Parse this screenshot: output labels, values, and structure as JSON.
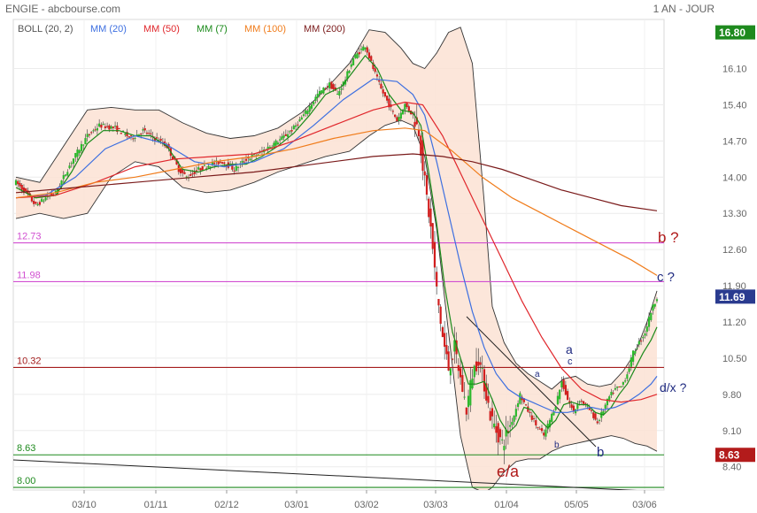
{
  "header": {
    "title": "ENGIE - abcbourse.com",
    "period": "1 AN - JOUR"
  },
  "colors": {
    "ma20": "#3d6fe0",
    "ma50": "#e0262b",
    "ma7": "#1a8a1a",
    "ma100": "#f07c1b",
    "ma200": "#7a1a1a",
    "boll_fill": "#fbe2d4",
    "candle_up": "#2db82d",
    "candle_down": "#d11d1d",
    "level_magenta": "#d14fd1",
    "level_maroon": "#a51d1d",
    "level_green": "#1e8a1e"
  },
  "chart_data": {
    "type": "line",
    "title": "",
    "ylabel": "",
    "xlabel": "",
    "ylim": [
      7.95,
      17.05
    ],
    "yticks": [
      "16.10",
      "15.40",
      "14.70",
      "14.00",
      "13.30",
      "12.60",
      "11.90",
      "11.20",
      "10.50",
      "9.80",
      "9.10",
      "8.40"
    ],
    "xticks": [
      "03/10",
      "01/11",
      "02/12",
      "03/01",
      "03/02",
      "03/03",
      "01/04",
      "05/05",
      "03/06"
    ],
    "legend": [
      {
        "name": "BOLL (20, 2)",
        "color": "#555555"
      },
      {
        "name": "MM (20)",
        "color": "#3d6fe0"
      },
      {
        "name": "MM (50)",
        "color": "#e0262b"
      },
      {
        "name": "MM (7)",
        "color": "#1a8a1a"
      },
      {
        "name": "MM (100)",
        "color": "#f07c1b"
      },
      {
        "name": "MM (200)",
        "color": "#7a1a1a"
      }
    ],
    "price_badges": {
      "high": "16.80",
      "last": "11.69",
      "low": "8.63"
    },
    "levels": [
      {
        "label": "12.73",
        "value": 12.73,
        "color": "#d14fd1"
      },
      {
        "label": "11.98",
        "value": 11.98,
        "color": "#d14fd1"
      },
      {
        "label": "10.32",
        "value": 10.32,
        "color": "#a51d1d"
      },
      {
        "label": "8.63",
        "value": 8.63,
        "color": "#1e8a1e"
      },
      {
        "label": "8.00",
        "value": 8.0,
        "color": "#1e8a1e"
      }
    ],
    "annotations": [
      {
        "text": "b ?",
        "color": "#b01919"
      },
      {
        "text": "c ?",
        "color": "#1f2a80"
      },
      {
        "text": "a",
        "color": "#1f2a80"
      },
      {
        "text": "c",
        "color": "#1f2a80"
      },
      {
        "text": "a",
        "color": "#1f2a80"
      },
      {
        "text": "d/x ?",
        "color": "#1f2a80"
      },
      {
        "text": "b",
        "color": "#1f2a80"
      },
      {
        "text": "b",
        "color": "#1f2a80"
      },
      {
        "text": "e/a",
        "color": "#b01919"
      }
    ],
    "price_path": [
      [
        0,
        13.9
      ],
      [
        5,
        13.7
      ],
      [
        10,
        13.45
      ],
      [
        15,
        13.6
      ],
      [
        20,
        13.7
      ],
      [
        28,
        14.3
      ],
      [
        36,
        14.8
      ],
      [
        42,
        15.0
      ],
      [
        50,
        14.95
      ],
      [
        58,
        14.75
      ],
      [
        64,
        14.9
      ],
      [
        70,
        14.75
      ],
      [
        76,
        14.6
      ],
      [
        82,
        14.15
      ],
      [
        86,
        14.0
      ],
      [
        92,
        14.15
      ],
      [
        98,
        14.25
      ],
      [
        104,
        14.3
      ],
      [
        110,
        14.15
      ],
      [
        116,
        14.35
      ],
      [
        122,
        14.45
      ],
      [
        128,
        14.6
      ],
      [
        134,
        14.75
      ],
      [
        140,
        14.95
      ],
      [
        146,
        15.25
      ],
      [
        152,
        15.6
      ],
      [
        158,
        15.8
      ],
      [
        162,
        15.6
      ],
      [
        166,
        15.9
      ],
      [
        170,
        16.3
      ],
      [
        176,
        16.55
      ],
      [
        180,
        16.1
      ],
      [
        184,
        15.7
      ],
      [
        188,
        15.4
      ],
      [
        192,
        15.1
      ],
      [
        196,
        15.4
      ],
      [
        200,
        15.2
      ],
      [
        203,
        14.9
      ],
      [
        206,
        13.9
      ],
      [
        209,
        13.0
      ],
      [
        212,
        11.8
      ],
      [
        215,
        10.9
      ],
      [
        218,
        10.3
      ],
      [
        221,
        10.7
      ],
      [
        224,
        10.1
      ],
      [
        227,
        9.5
      ],
      [
        230,
        10.2
      ],
      [
        233,
        10.5
      ],
      [
        236,
        10.0
      ],
      [
        239,
        9.4
      ],
      [
        242,
        9.1
      ],
      [
        245,
        8.85
      ],
      [
        248,
        9.1
      ],
      [
        251,
        9.4
      ],
      [
        254,
        9.8
      ],
      [
        257,
        9.55
      ],
      [
        260,
        9.35
      ],
      [
        263,
        9.15
      ],
      [
        266,
        9.0
      ],
      [
        269,
        9.3
      ],
      [
        272,
        9.6
      ],
      [
        275,
        10.05
      ],
      [
        278,
        9.7
      ],
      [
        281,
        9.45
      ],
      [
        284,
        9.7
      ],
      [
        287,
        9.6
      ],
      [
        290,
        9.45
      ],
      [
        293,
        9.25
      ],
      [
        296,
        9.5
      ],
      [
        299,
        9.75
      ],
      [
        302,
        9.9
      ],
      [
        305,
        9.95
      ],
      [
        308,
        10.2
      ],
      [
        311,
        10.6
      ],
      [
        314,
        10.8
      ],
      [
        317,
        11.0
      ],
      [
        320,
        11.4
      ],
      [
        323,
        11.69
      ]
    ],
    "series": [
      {
        "name": "MM (7)",
        "color": "#1a8a1a",
        "values": [
          [
            0,
            13.8
          ],
          [
            10,
            13.6
          ],
          [
            20,
            13.65
          ],
          [
            28,
            14.1
          ],
          [
            36,
            14.65
          ],
          [
            44,
            14.9
          ],
          [
            52,
            14.9
          ],
          [
            60,
            14.8
          ],
          [
            68,
            14.8
          ],
          [
            76,
            14.6
          ],
          [
            84,
            14.15
          ],
          [
            92,
            14.1
          ],
          [
            100,
            14.2
          ],
          [
            108,
            14.25
          ],
          [
            116,
            14.25
          ],
          [
            124,
            14.4
          ],
          [
            132,
            14.6
          ],
          [
            140,
            14.85
          ],
          [
            148,
            15.2
          ],
          [
            156,
            15.6
          ],
          [
            164,
            15.75
          ],
          [
            170,
            16.05
          ],
          [
            176,
            16.35
          ],
          [
            182,
            16.1
          ],
          [
            188,
            15.6
          ],
          [
            194,
            15.3
          ],
          [
            200,
            15.25
          ],
          [
            204,
            15.0
          ],
          [
            208,
            14.1
          ],
          [
            212,
            13.1
          ],
          [
            216,
            11.9
          ],
          [
            220,
            11.0
          ],
          [
            224,
            10.5
          ],
          [
            228,
            10.0
          ],
          [
            232,
            10.0
          ],
          [
            236,
            10.05
          ],
          [
            240,
            9.7
          ],
          [
            244,
            9.3
          ],
          [
            248,
            9.05
          ],
          [
            252,
            9.2
          ],
          [
            256,
            9.55
          ],
          [
            260,
            9.5
          ],
          [
            264,
            9.3
          ],
          [
            268,
            9.15
          ],
          [
            272,
            9.3
          ],
          [
            276,
            9.6
          ],
          [
            280,
            9.65
          ],
          [
            284,
            9.6
          ],
          [
            288,
            9.6
          ],
          [
            292,
            9.45
          ],
          [
            296,
            9.4
          ],
          [
            300,
            9.55
          ],
          [
            304,
            9.8
          ],
          [
            308,
            10.0
          ],
          [
            312,
            10.3
          ],
          [
            316,
            10.6
          ],
          [
            320,
            10.85
          ],
          [
            323,
            11.1
          ]
        ]
      },
      {
        "name": "MM (20)",
        "color": "#3d6fe0",
        "values": [
          [
            0,
            13.6
          ],
          [
            15,
            13.65
          ],
          [
            30,
            14.0
          ],
          [
            45,
            14.55
          ],
          [
            60,
            14.8
          ],
          [
            75,
            14.65
          ],
          [
            90,
            14.3
          ],
          [
            105,
            14.2
          ],
          [
            120,
            14.3
          ],
          [
            135,
            14.55
          ],
          [
            150,
            15.0
          ],
          [
            165,
            15.5
          ],
          [
            180,
            15.9
          ],
          [
            192,
            15.85
          ],
          [
            200,
            15.6
          ],
          [
            206,
            15.2
          ],
          [
            212,
            14.3
          ],
          [
            218,
            13.3
          ],
          [
            224,
            12.3
          ],
          [
            230,
            11.4
          ],
          [
            236,
            10.7
          ],
          [
            242,
            10.2
          ],
          [
            248,
            9.9
          ],
          [
            254,
            9.75
          ],
          [
            260,
            9.65
          ],
          [
            266,
            9.55
          ],
          [
            272,
            9.45
          ],
          [
            278,
            9.45
          ],
          [
            284,
            9.5
          ],
          [
            290,
            9.55
          ],
          [
            296,
            9.5
          ],
          [
            302,
            9.55
          ],
          [
            308,
            9.65
          ],
          [
            314,
            9.8
          ],
          [
            320,
            10.0
          ],
          [
            323,
            10.15
          ]
        ]
      },
      {
        "name": "MM (50)",
        "color": "#e0262b",
        "values": [
          [
            0,
            13.6
          ],
          [
            20,
            13.65
          ],
          [
            40,
            13.9
          ],
          [
            60,
            14.2
          ],
          [
            80,
            14.35
          ],
          [
            100,
            14.4
          ],
          [
            120,
            14.45
          ],
          [
            140,
            14.7
          ],
          [
            160,
            15.0
          ],
          [
            180,
            15.3
          ],
          [
            196,
            15.45
          ],
          [
            205,
            15.4
          ],
          [
            215,
            14.8
          ],
          [
            225,
            14.0
          ],
          [
            235,
            13.2
          ],
          [
            245,
            12.4
          ],
          [
            255,
            11.6
          ],
          [
            265,
            10.9
          ],
          [
            275,
            10.3
          ],
          [
            285,
            9.9
          ],
          [
            295,
            9.7
          ],
          [
            305,
            9.65
          ],
          [
            315,
            9.7
          ],
          [
            323,
            9.8
          ]
        ]
      },
      {
        "name": "MM (100)",
        "color": "#f07c1b",
        "values": [
          [
            0,
            13.6
          ],
          [
            20,
            13.7
          ],
          [
            40,
            13.9
          ],
          [
            60,
            14.0
          ],
          [
            80,
            14.15
          ],
          [
            100,
            14.3
          ],
          [
            120,
            14.4
          ],
          [
            140,
            14.55
          ],
          [
            160,
            14.75
          ],
          [
            180,
            14.9
          ],
          [
            196,
            14.95
          ],
          [
            206,
            14.9
          ],
          [
            220,
            14.5
          ],
          [
            235,
            14.0
          ],
          [
            250,
            13.6
          ],
          [
            265,
            13.3
          ],
          [
            280,
            13.0
          ],
          [
            295,
            12.7
          ],
          [
            310,
            12.4
          ],
          [
            323,
            12.1
          ]
        ]
      },
      {
        "name": "MM (200)",
        "color": "#7a1a1a",
        "values": [
          [
            0,
            13.7
          ],
          [
            30,
            13.8
          ],
          [
            60,
            13.9
          ],
          [
            90,
            14.0
          ],
          [
            120,
            14.1
          ],
          [
            150,
            14.25
          ],
          [
            180,
            14.4
          ],
          [
            200,
            14.45
          ],
          [
            215,
            14.4
          ],
          [
            230,
            14.3
          ],
          [
            245,
            14.15
          ],
          [
            260,
            13.95
          ],
          [
            275,
            13.75
          ],
          [
            290,
            13.6
          ],
          [
            305,
            13.45
          ],
          [
            323,
            13.35
          ]
        ]
      }
    ],
    "bollinger": {
      "upper": [
        [
          0,
          14.0
        ],
        [
          12,
          13.9
        ],
        [
          24,
          14.6
        ],
        [
          36,
          15.3
        ],
        [
          48,
          15.35
        ],
        [
          60,
          15.3
        ],
        [
          72,
          15.3
        ],
        [
          84,
          15.05
        ],
        [
          96,
          14.85
        ],
        [
          108,
          14.75
        ],
        [
          120,
          14.8
        ],
        [
          132,
          14.95
        ],
        [
          144,
          15.25
        ],
        [
          156,
          15.7
        ],
        [
          168,
          16.2
        ],
        [
          178,
          16.85
        ],
        [
          186,
          16.8
        ],
        [
          194,
          16.5
        ],
        [
          200,
          16.2
        ],
        [
          206,
          16.1
        ],
        [
          212,
          16.4
        ],
        [
          218,
          16.8
        ],
        [
          224,
          16.9
        ],
        [
          230,
          16.2
        ],
        [
          236,
          13.5
        ],
        [
          240,
          11.5
        ],
        [
          246,
          10.8
        ],
        [
          252,
          10.4
        ],
        [
          258,
          10.2
        ],
        [
          264,
          10.05
        ],
        [
          270,
          9.9
        ],
        [
          276,
          10.1
        ],
        [
          282,
          10.15
        ],
        [
          288,
          10.0
        ],
        [
          294,
          9.95
        ],
        [
          300,
          10.0
        ],
        [
          306,
          10.25
        ],
        [
          312,
          10.6
        ],
        [
          318,
          11.2
        ],
        [
          323,
          11.8
        ]
      ],
      "lower": [
        [
          0,
          13.2
        ],
        [
          12,
          13.3
        ],
        [
          24,
          13.2
        ],
        [
          36,
          13.3
        ],
        [
          48,
          14.0
        ],
        [
          60,
          14.3
        ],
        [
          72,
          14.2
        ],
        [
          84,
          13.8
        ],
        [
          96,
          13.7
        ],
        [
          108,
          13.75
        ],
        [
          120,
          13.9
        ],
        [
          132,
          14.1
        ],
        [
          144,
          14.25
        ],
        [
          156,
          14.4
        ],
        [
          168,
          14.5
        ],
        [
          178,
          14.8
        ],
        [
          186,
          15.0
        ],
        [
          194,
          15.1
        ],
        [
          200,
          15.0
        ],
        [
          206,
          14.4
        ],
        [
          212,
          13.0
        ],
        [
          218,
          11.0
        ],
        [
          224,
          9.0
        ],
        [
          230,
          8.0
        ],
        [
          236,
          7.9
        ],
        [
          240,
          8.0
        ],
        [
          246,
          8.3
        ],
        [
          252,
          8.5
        ],
        [
          258,
          8.55
        ],
        [
          264,
          8.55
        ],
        [
          270,
          8.7
        ],
        [
          276,
          8.8
        ],
        [
          282,
          8.85
        ],
        [
          288,
          8.9
        ],
        [
          294,
          8.95
        ],
        [
          300,
          9.0
        ],
        [
          306,
          8.95
        ],
        [
          312,
          8.85
        ],
        [
          318,
          8.8
        ],
        [
          323,
          8.7
        ]
      ]
    }
  }
}
